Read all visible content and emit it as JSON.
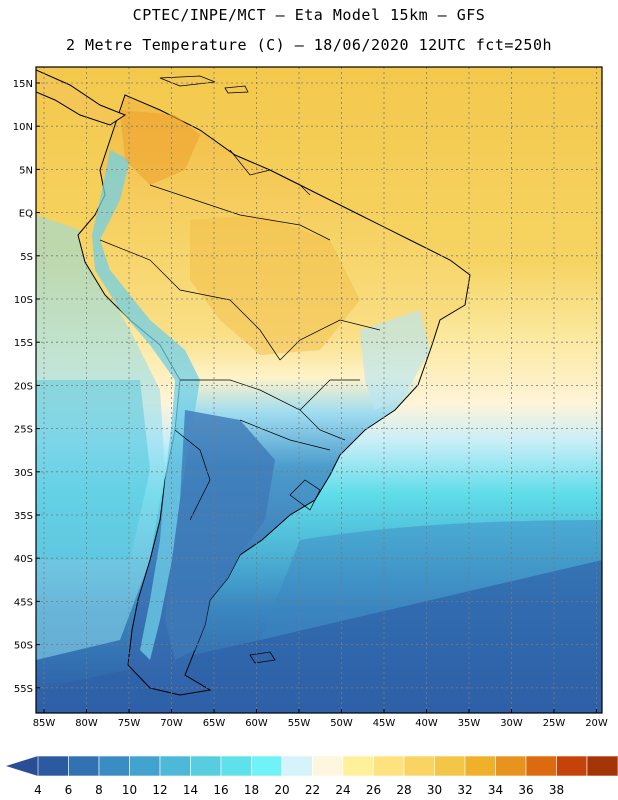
{
  "header": {
    "line1": "CPTEC/INPE/MCT –  Eta Model 15km – GFS",
    "line2": "2 Metre Temperature (C) – 18/06/2020 12UTC fct=250h"
  },
  "map": {
    "lat_labels": [
      "15N",
      "10N",
      "5N",
      "EQ",
      "5S",
      "10S",
      "15S",
      "20S",
      "25S",
      "30S",
      "35S",
      "40S",
      "45S",
      "50S",
      "55S"
    ],
    "lon_labels": [
      "85W",
      "80W",
      "75W",
      "70W",
      "65W",
      "60W",
      "55W",
      "50W",
      "45W",
      "40W",
      "35W",
      "30W",
      "25W",
      "20W"
    ],
    "ocean_colors": {
      "tropical": "#f5cf55",
      "subtropical": "#fdf0a0",
      "cool": "#5fe0ee",
      "cold": "#3b8cc4",
      "polar": "#2f66aa"
    },
    "land_colors": {
      "hot": "#f0b93e",
      "warm": "#f7d56a",
      "mild": "#fff4c6",
      "cool": "#8fd4ee",
      "cold": "#3c78b6"
    }
  },
  "colorbar": {
    "labels": [
      "4",
      "6",
      "8",
      "10",
      "12",
      "14",
      "16",
      "18",
      "20",
      "22",
      "24",
      "26",
      "28",
      "30",
      "32",
      "34",
      "36",
      "38"
    ],
    "colors": [
      "#2c5aa0",
      "#3372b2",
      "#3a8dc3",
      "#43a3cf",
      "#4db8d8",
      "#58cde0",
      "#5fe1ea",
      "#6ff3f6",
      "#d6f3fb",
      "#fff6e0",
      "#fff09a",
      "#fde37e",
      "#f9d462",
      "#f3c647",
      "#efb12a",
      "#e9931f",
      "#de6a10",
      "#c5430b",
      "#a33507"
    ],
    "low_color": "#2a4e96",
    "high_color": "#a33507"
  }
}
